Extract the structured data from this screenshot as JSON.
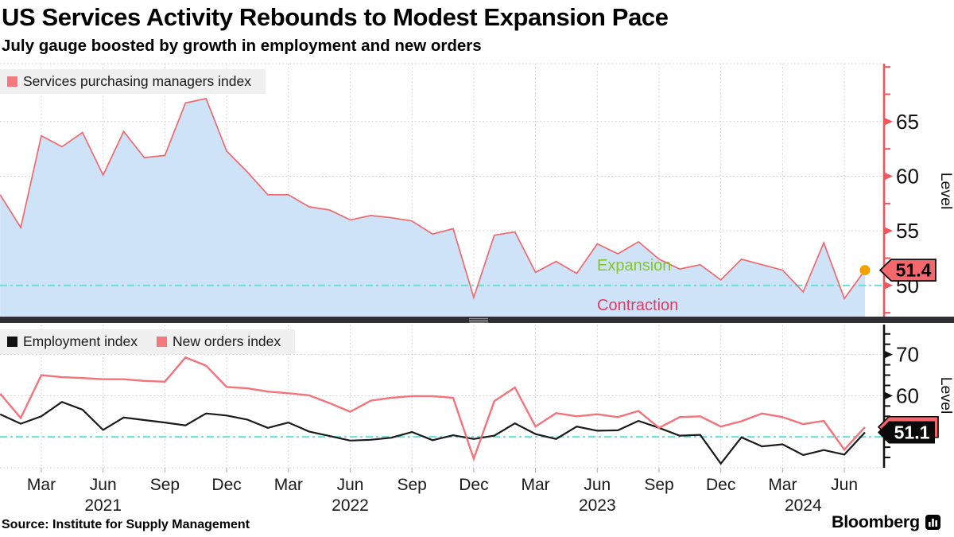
{
  "header": {
    "title": "US Services Activity Rebounds to Modest Expansion Pace",
    "subtitle": "July gauge boosted by growth in employment and new orders"
  },
  "footer": {
    "source": "Source: Institute for Supply Management",
    "brand": "Bloomberg"
  },
  "x_axis": {
    "month_ticks": [
      {
        "label": "Mar",
        "month_index": 2
      },
      {
        "label": "Jun",
        "month_index": 5
      },
      {
        "label": "Sep",
        "month_index": 8
      },
      {
        "label": "Dec",
        "month_index": 11
      },
      {
        "label": "Mar",
        "month_index": 14
      },
      {
        "label": "Jun",
        "month_index": 17
      },
      {
        "label": "Sep",
        "month_index": 20
      },
      {
        "label": "Dec",
        "month_index": 23
      },
      {
        "label": "Mar",
        "month_index": 26
      },
      {
        "label": "Jun",
        "month_index": 29
      },
      {
        "label": "Sep",
        "month_index": 32
      },
      {
        "label": "Dec",
        "month_index": 35
      },
      {
        "label": "Mar",
        "month_index": 38
      },
      {
        "label": "Jun",
        "month_index": 41
      }
    ],
    "year_labels": [
      {
        "label": "2021",
        "month_index": 5
      },
      {
        "label": "2022",
        "month_index": 17
      },
      {
        "label": "2023",
        "month_index": 29
      },
      {
        "label": "2024",
        "month_index": 39
      }
    ]
  },
  "chart_data": [
    {
      "type": "area",
      "panel": "top",
      "x_start": "Jan 2021",
      "x_end": "Jul 2024",
      "x_unit": "month",
      "ylabel": "Level",
      "ylim": [
        47,
        70.3
      ],
      "yticks_labeled": [
        50,
        55,
        60,
        65
      ],
      "ytick_step": 2.5,
      "ytick_range": [
        47.5,
        70
      ],
      "grid_values": [
        55,
        60,
        65
      ],
      "axis_color": "#F2565C",
      "ref_line": {
        "value": 50,
        "color": "#66DFD5"
      },
      "badge": {
        "label": "51.4",
        "bg": "#F4676D",
        "text_color": "#000000"
      },
      "last_point_marker": {
        "color": "#F6A000"
      },
      "annotations": [
        {
          "text": "Expansion",
          "color": "#84C528"
        },
        {
          "text": "Contraction",
          "color": "#E23B64"
        }
      ],
      "series": [
        {
          "name": "Services purchasing managers index",
          "color": "#EE6A70",
          "fill": "#CEE3F8",
          "swatch": "#F4787D",
          "values": [
            58.3,
            55.3,
            63.7,
            62.7,
            64.0,
            60.1,
            64.1,
            61.7,
            61.9,
            66.7,
            67.1,
            62.3,
            60.4,
            58.3,
            58.3,
            57.2,
            56.9,
            56.0,
            56.4,
            56.2,
            55.9,
            54.7,
            55.2,
            48.9,
            54.6,
            54.9,
            51.2,
            52.2,
            51.1,
            53.8,
            52.9,
            54.0,
            52.4,
            51.5,
            51.9,
            50.5,
            52.4,
            51.9,
            51.4,
            49.4,
            53.9,
            48.8,
            51.4
          ]
        }
      ]
    },
    {
      "type": "line",
      "panel": "bottom",
      "x_start": "Jan 2021",
      "x_end": "Jul 2024",
      "x_unit": "month",
      "ylabel": "Level",
      "ylim": [
        42.5,
        76.5
      ],
      "yticks_labeled": [
        60,
        70
      ],
      "ytick_step": 2.5,
      "ytick_range": [
        45,
        75
      ],
      "grid_values": [
        60,
        70
      ],
      "axis_color": "#111111",
      "ref_line": {
        "value": 50,
        "color": "#66DFD5"
      },
      "badges": [
        {
          "for_series": "New orders index",
          "label": "",
          "bg": "#F4676D",
          "text_color": "#000000"
        },
        {
          "for_series": "Employment index",
          "label": "51.1",
          "bg": "#0A0A0A",
          "text_color": "#FFFFFF"
        }
      ],
      "series": [
        {
          "name": "Employment index",
          "color": "#1A1A1A",
          "swatch": "#111111",
          "values": [
            55.5,
            53.2,
            55.0,
            58.5,
            56.6,
            51.7,
            54.7,
            54.1,
            53.5,
            52.8,
            55.7,
            55.2,
            54.2,
            52.2,
            53.5,
            51.3,
            50.2,
            49.1,
            49.3,
            49.8,
            51.2,
            49.2,
            50.4,
            49.5,
            50.3,
            53.3,
            50.7,
            49.5,
            52.5,
            51.5,
            51.6,
            53.9,
            52.2,
            50.3,
            50.5,
            43.5,
            49.9,
            47.7,
            48.2,
            45.6,
            46.8,
            45.7,
            51.1
          ]
        },
        {
          "name": "New orders index",
          "color": "#F4737B",
          "swatch": "#F4787D",
          "values": [
            60.5,
            54.6,
            65.0,
            64.5,
            64.3,
            64.0,
            64.0,
            63.6,
            63.4,
            69.3,
            67.3,
            62.1,
            61.8,
            61.0,
            60.6,
            60.1,
            58.2,
            56.1,
            58.8,
            59.5,
            59.9,
            59.9,
            59.5,
            44.7,
            58.7,
            62.0,
            52.5,
            55.8,
            55.0,
            55.5,
            54.8,
            56.3,
            52.2,
            54.8,
            55.0,
            52.5,
            53.8,
            55.7,
            54.8,
            53.1,
            53.9,
            46.9,
            52.4
          ]
        }
      ]
    }
  ]
}
